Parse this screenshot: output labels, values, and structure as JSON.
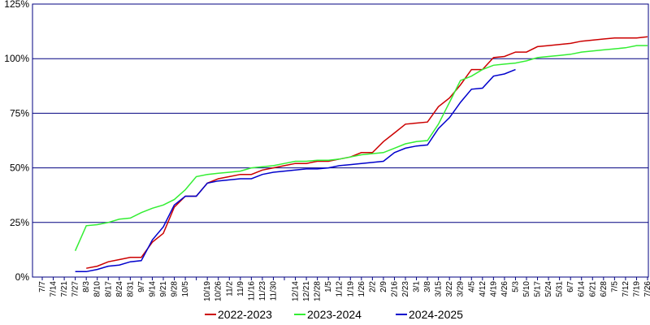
{
  "chart_data": {
    "type": "line",
    "categories": [
      "7/7",
      "7/14",
      "7/21",
      "7/27",
      "8/3",
      "8/10",
      "8/17",
      "8/24",
      "8/31",
      "9/7",
      "9/14",
      "9/21",
      "9/28",
      "10/5",
      null,
      "10/19",
      "10/26",
      "11/2",
      "11/9",
      "11/16",
      "11/23",
      "11/30",
      null,
      "12/14",
      "12/21",
      "12/28",
      "1/5",
      "1/12",
      "1/19",
      "1/26",
      "2/2",
      "2/9",
      "2/16",
      "2/23",
      "3/1",
      "3/8",
      "3/15",
      "3/22",
      "3/29",
      "4/5",
      "4/12",
      "4/19",
      "4/26",
      "5/3",
      "5/10",
      "5/17",
      "5/24",
      "5/31",
      "6/7",
      "6/14",
      "6/21",
      "6/28",
      "7/5",
      "7/12",
      "7/19",
      "7/26"
    ],
    "series": [
      {
        "name": "2022-2023",
        "color": "#cc0000",
        "values": [
          null,
          null,
          null,
          null,
          4,
          5,
          7,
          8,
          9,
          9,
          16,
          20,
          32,
          37,
          37,
          43,
          45,
          46,
          47,
          47,
          49,
          50,
          51,
          52,
          52,
          53,
          53,
          54,
          55,
          57,
          57,
          62,
          66,
          70,
          70.5,
          71,
          78,
          82,
          88,
          95,
          95,
          100.5,
          101,
          103,
          103,
          105.5,
          106,
          106.5,
          107,
          108,
          108.5,
          109,
          109.5,
          109.5,
          109.5,
          110
        ]
      },
      {
        "name": "2023-2024",
        "color": "#33ee33",
        "values": [
          null,
          null,
          null,
          12,
          23.5,
          24,
          25,
          26.5,
          27,
          29.5,
          31.5,
          33,
          35.5,
          40,
          46,
          47,
          47.5,
          48,
          48.5,
          50,
          50.5,
          51,
          52,
          53,
          53,
          53.5,
          53.5,
          54,
          55,
          56,
          56.5,
          57,
          59,
          61,
          62,
          62.5,
          70,
          80,
          90,
          92,
          95,
          97,
          97.5,
          98,
          99,
          100.5,
          101,
          101.5,
          102,
          103,
          103.5,
          104,
          104.5,
          105,
          106,
          106
        ]
      },
      {
        "name": "2024-2025",
        "color": "#0000cc",
        "values": [
          null,
          null,
          null,
          2.5,
          2.5,
          3.5,
          5,
          5.5,
          7,
          7.5,
          17,
          23,
          33,
          37,
          37,
          43,
          44,
          44.5,
          45,
          45,
          47,
          48,
          48.5,
          49,
          49.5,
          49.5,
          50,
          51,
          51.5,
          52,
          52.5,
          53,
          57,
          59,
          60,
          60.5,
          68,
          73,
          80,
          86,
          86.5,
          92,
          93,
          95,
          null,
          null,
          null,
          null,
          null,
          null,
          null,
          null,
          null,
          null,
          null,
          null
        ]
      }
    ],
    "ylim": [
      0,
      125
    ],
    "yticks": [
      {
        "value": 0,
        "label": "0%"
      },
      {
        "value": 25,
        "label": "25%"
      },
      {
        "value": 50,
        "label": "50%"
      },
      {
        "value": 75,
        "label": "75%"
      },
      {
        "value": 100,
        "label": "100%"
      },
      {
        "value": 125,
        "label": "125%"
      }
    ],
    "grid": true
  }
}
